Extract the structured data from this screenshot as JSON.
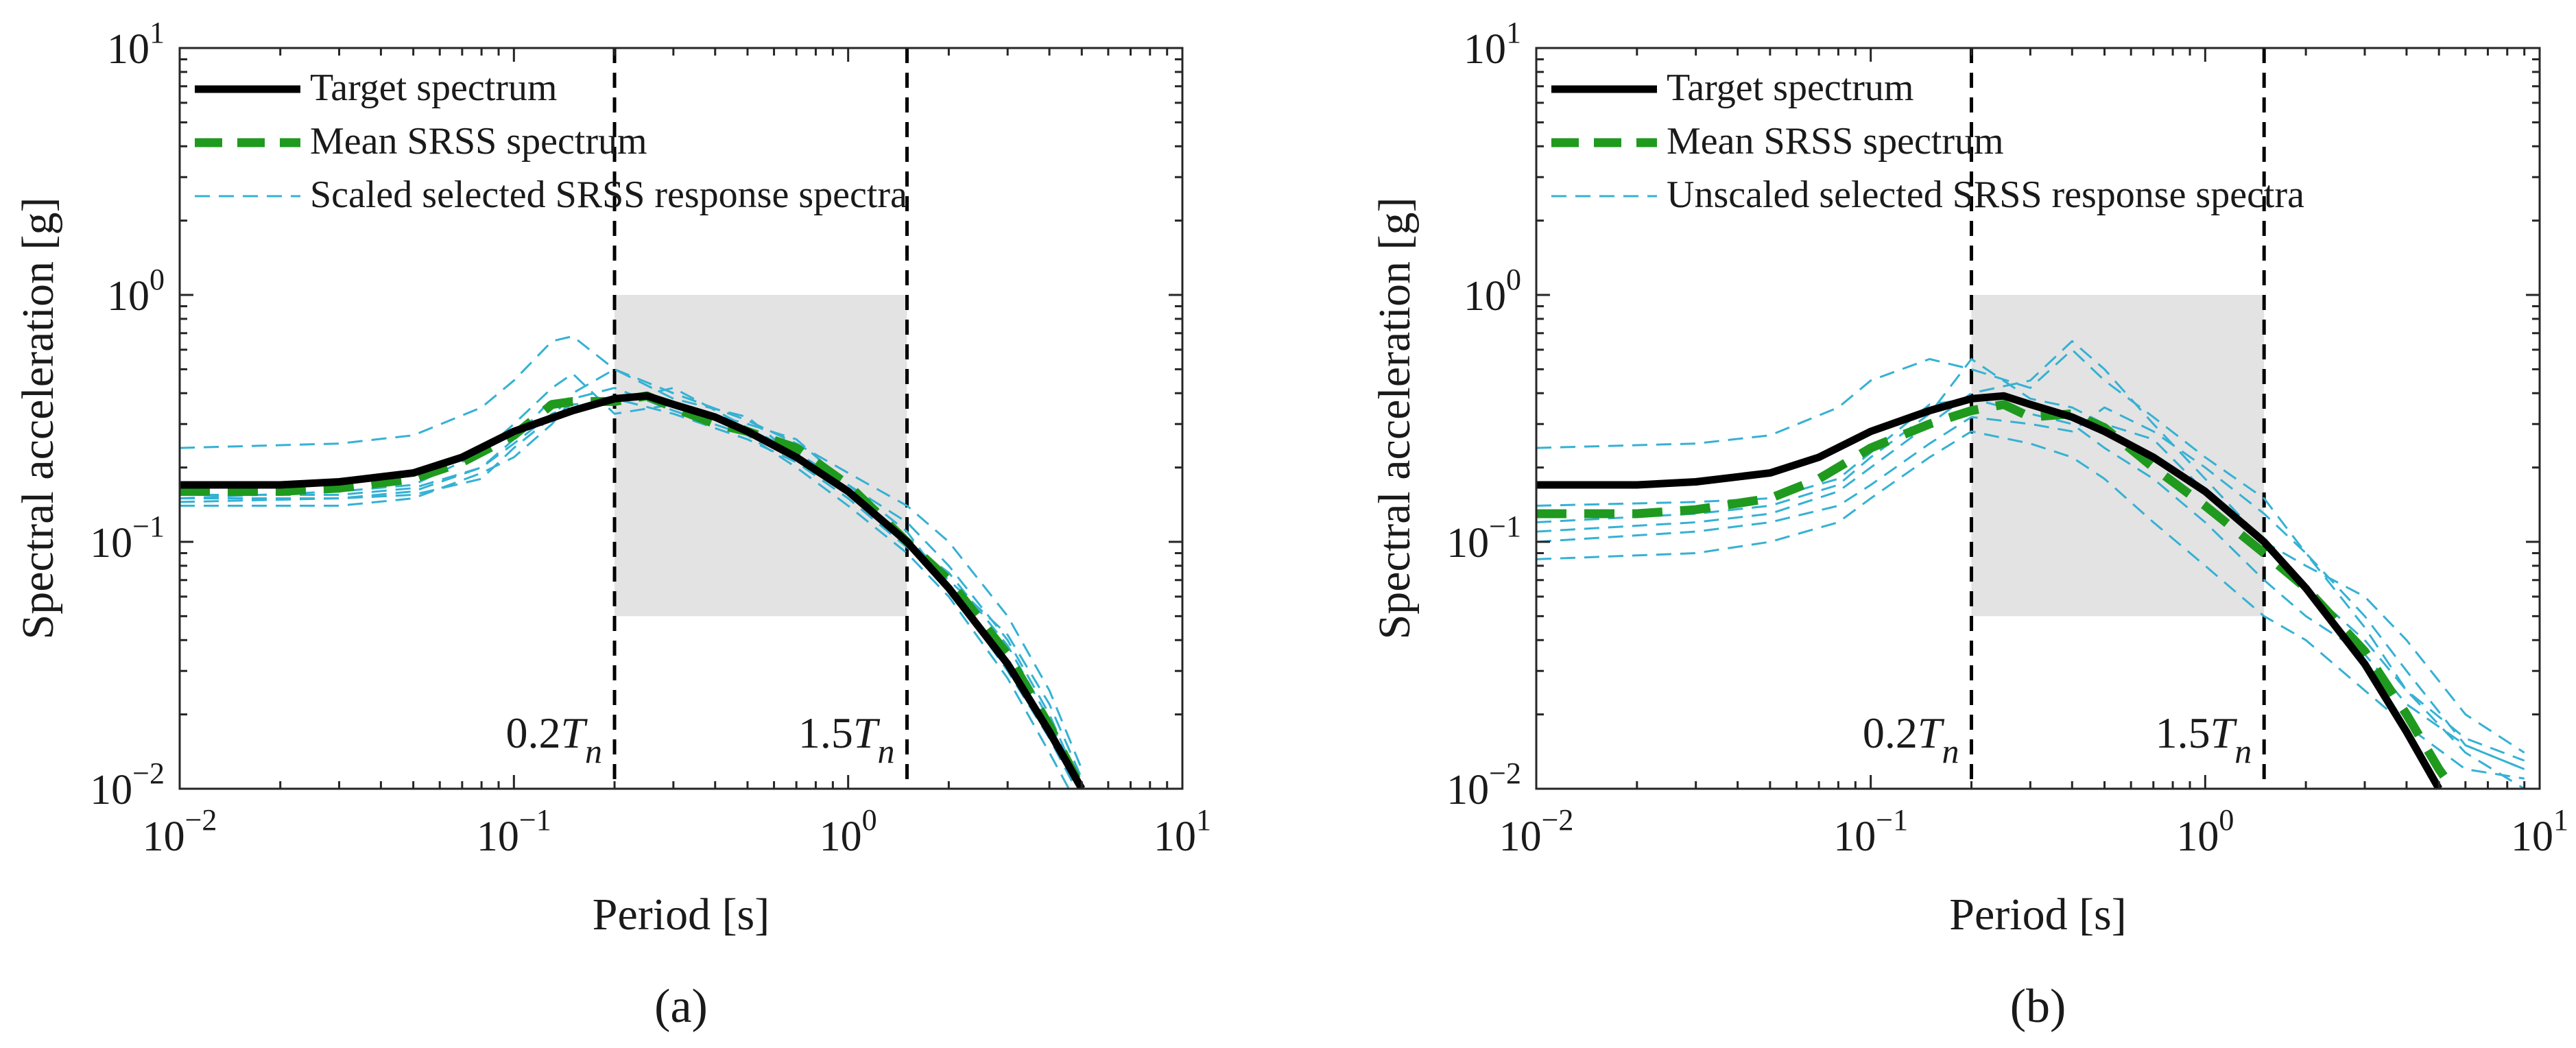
{
  "chart_data": [
    {
      "type": "line",
      "panel_label": "(a)",
      "xscale": "log",
      "yscale": "log",
      "xlim": [
        0.01,
        10
      ],
      "ylim": [
        0.01,
        10
      ],
      "xlabel": "Period [s]",
      "ylabel": "Spectral acceleration [g]",
      "x_ticks": [
        {
          "value": 0.01,
          "base": "10",
          "exp": "−2"
        },
        {
          "value": 0.1,
          "base": "10",
          "exp": "−1"
        },
        {
          "value": 1,
          "base": "10",
          "exp": "0"
        },
        {
          "value": 10,
          "base": "10",
          "exp": "1"
        }
      ],
      "y_ticks": [
        {
          "value": 0.01,
          "base": "10",
          "exp": "−2"
        },
        {
          "value": 0.1,
          "base": "10",
          "exp": "−1"
        },
        {
          "value": 1,
          "base": "10",
          "exp": "0"
        },
        {
          "value": 10,
          "base": "10",
          "exp": "1"
        }
      ],
      "legend_position": "top-left",
      "shaded_region": {
        "x": [
          0.2,
          1.5
        ],
        "y": [
          0.05,
          1
        ]
      },
      "vlines": [
        {
          "x": 0.2,
          "label": "0.2",
          "label_var": "T",
          "label_sub": "n"
        },
        {
          "x": 1.5,
          "label": "1.5",
          "label_var": "T",
          "label_sub": "n"
        }
      ],
      "series": [
        {
          "name": "Target spectrum",
          "role": "target",
          "color": "#000000",
          "x": [
            0.01,
            0.02,
            0.03,
            0.05,
            0.07,
            0.1,
            0.15,
            0.2,
            0.25,
            0.3,
            0.4,
            0.5,
            0.7,
            1.0,
            1.5,
            2.0,
            3.0,
            4.0,
            5.0
          ],
          "values": [
            0.17,
            0.17,
            0.175,
            0.19,
            0.22,
            0.28,
            0.34,
            0.38,
            0.39,
            0.36,
            0.32,
            0.28,
            0.22,
            0.16,
            0.1,
            0.065,
            0.032,
            0.017,
            0.01
          ]
        },
        {
          "name": "Mean SRSS spectrum",
          "role": "mean",
          "color": "#1f9a1f",
          "x": [
            0.01,
            0.02,
            0.03,
            0.05,
            0.07,
            0.1,
            0.13,
            0.15,
            0.2,
            0.25,
            0.3,
            0.4,
            0.5,
            0.7,
            1.0,
            1.5,
            2.0,
            3.0,
            4.0,
            5.0
          ],
          "values": [
            0.16,
            0.16,
            0.165,
            0.18,
            0.21,
            0.27,
            0.36,
            0.37,
            0.37,
            0.39,
            0.35,
            0.3,
            0.28,
            0.24,
            0.17,
            0.1,
            0.07,
            0.035,
            0.018,
            0.01
          ]
        },
        {
          "name": "Scaled selected SRSS response spectra",
          "role": "record",
          "color": "#35b1d3",
          "x": [
            0.01,
            0.03,
            0.05,
            0.08,
            0.1,
            0.13,
            0.15,
            0.2,
            0.3,
            0.5,
            0.7,
            1.0,
            1.5,
            2.0,
            3.0,
            4.0,
            5.0
          ],
          "values": [
            0.24,
            0.25,
            0.27,
            0.35,
            0.45,
            0.65,
            0.68,
            0.5,
            0.4,
            0.31,
            0.25,
            0.19,
            0.14,
            0.1,
            0.05,
            0.025,
            0.012
          ]
        },
        {
          "name": "",
          "role": "record",
          "color": "#35b1d3",
          "x": [
            0.01,
            0.03,
            0.05,
            0.08,
            0.1,
            0.13,
            0.15,
            0.2,
            0.3,
            0.5,
            0.7,
            1.0,
            1.5,
            2.0,
            3.0,
            4.0,
            5.0
          ],
          "values": [
            0.14,
            0.14,
            0.15,
            0.19,
            0.22,
            0.3,
            0.38,
            0.42,
            0.34,
            0.27,
            0.2,
            0.14,
            0.09,
            0.06,
            0.028,
            0.014,
            0.008
          ]
        },
        {
          "name": "",
          "role": "record",
          "color": "#35b1d3",
          "x": [
            0.01,
            0.03,
            0.05,
            0.08,
            0.1,
            0.13,
            0.15,
            0.2,
            0.3,
            0.5,
            0.7,
            1.0,
            1.5,
            2.0,
            3.0,
            4.0,
            5.0
          ],
          "values": [
            0.15,
            0.15,
            0.16,
            0.2,
            0.25,
            0.33,
            0.36,
            0.37,
            0.42,
            0.29,
            0.23,
            0.17,
            0.12,
            0.08,
            0.04,
            0.02,
            0.01
          ]
        },
        {
          "name": "",
          "role": "record",
          "color": "#35b1d3",
          "x": [
            0.01,
            0.03,
            0.05,
            0.08,
            0.1,
            0.13,
            0.15,
            0.2,
            0.3,
            0.5,
            0.7,
            1.0,
            1.5,
            2.0,
            3.0,
            4.0,
            5.0
          ],
          "values": [
            0.15,
            0.16,
            0.17,
            0.23,
            0.3,
            0.42,
            0.48,
            0.33,
            0.36,
            0.3,
            0.26,
            0.17,
            0.11,
            0.065,
            0.03,
            0.016,
            0.009
          ]
        },
        {
          "name": "",
          "role": "record",
          "color": "#35b1d3",
          "x": [
            0.01,
            0.03,
            0.05,
            0.08,
            0.1,
            0.13,
            0.15,
            0.2,
            0.3,
            0.5,
            0.7,
            1.0,
            1.5,
            2.0,
            3.0,
            4.0,
            5.0
          ],
          "values": [
            0.155,
            0.155,
            0.165,
            0.2,
            0.26,
            0.38,
            0.34,
            0.38,
            0.33,
            0.26,
            0.21,
            0.15,
            0.095,
            0.07,
            0.042,
            0.022,
            0.011
          ]
        },
        {
          "name": "",
          "role": "record",
          "color": "#35b1d3",
          "x": [
            0.01,
            0.03,
            0.05,
            0.08,
            0.1,
            0.13,
            0.15,
            0.2,
            0.3,
            0.5,
            0.7,
            1.0,
            1.5,
            2.0,
            3.0,
            4.0,
            5.0
          ],
          "values": [
            0.145,
            0.15,
            0.155,
            0.18,
            0.24,
            0.32,
            0.4,
            0.5,
            0.38,
            0.32,
            0.22,
            0.16,
            0.1,
            0.075,
            0.038,
            0.019,
            0.01
          ]
        }
      ]
    },
    {
      "type": "line",
      "panel_label": "(b)",
      "xscale": "log",
      "yscale": "log",
      "xlim": [
        0.01,
        10
      ],
      "ylim": [
        0.01,
        10
      ],
      "xlabel": "Period [s]",
      "ylabel": "Spectral acceleration [g]",
      "x_ticks": [
        {
          "value": 0.01,
          "base": "10",
          "exp": "−2"
        },
        {
          "value": 0.1,
          "base": "10",
          "exp": "−1"
        },
        {
          "value": 1,
          "base": "10",
          "exp": "0"
        },
        {
          "value": 10,
          "base": "10",
          "exp": "1"
        }
      ],
      "y_ticks": [
        {
          "value": 0.01,
          "base": "10",
          "exp": "−2"
        },
        {
          "value": 0.1,
          "base": "10",
          "exp": "−1"
        },
        {
          "value": 1,
          "base": "10",
          "exp": "0"
        },
        {
          "value": 10,
          "base": "10",
          "exp": "1"
        }
      ],
      "legend_position": "top-left",
      "shaded_region": {
        "x": [
          0.2,
          1.5
        ],
        "y": [
          0.05,
          1
        ]
      },
      "vlines": [
        {
          "x": 0.2,
          "label": "0.2",
          "label_var": "T",
          "label_sub": "n"
        },
        {
          "x": 1.5,
          "label": "1.5",
          "label_var": "T",
          "label_sub": "n"
        }
      ],
      "series": [
        {
          "name": "Target spectrum",
          "role": "target",
          "color": "#000000",
          "x": [
            0.01,
            0.02,
            0.03,
            0.05,
            0.07,
            0.1,
            0.15,
            0.2,
            0.25,
            0.3,
            0.4,
            0.5,
            0.7,
            1.0,
            1.5,
            2.0,
            3.0,
            4.0,
            5.0
          ],
          "values": [
            0.17,
            0.17,
            0.175,
            0.19,
            0.22,
            0.28,
            0.34,
            0.38,
            0.39,
            0.36,
            0.32,
            0.28,
            0.22,
            0.16,
            0.1,
            0.065,
            0.032,
            0.017,
            0.01
          ]
        },
        {
          "name": "Mean SRSS spectrum",
          "role": "mean",
          "color": "#1f9a1f",
          "x": [
            0.01,
            0.02,
            0.03,
            0.05,
            0.07,
            0.1,
            0.15,
            0.2,
            0.25,
            0.3,
            0.4,
            0.5,
            0.7,
            1.0,
            1.5,
            2.0,
            3.0,
            4.0,
            5.0,
            5.5
          ],
          "values": [
            0.13,
            0.13,
            0.135,
            0.15,
            0.18,
            0.24,
            0.3,
            0.34,
            0.36,
            0.32,
            0.33,
            0.29,
            0.2,
            0.14,
            0.09,
            0.065,
            0.036,
            0.02,
            0.012,
            0.01
          ]
        },
        {
          "name": "Unscaled selected SRSS response spectra",
          "role": "record",
          "color": "#35b1d3",
          "x": [
            0.01,
            0.03,
            0.05,
            0.08,
            0.1,
            0.15,
            0.2,
            0.3,
            0.4,
            0.5,
            0.7,
            1.0,
            1.5,
            2.0,
            3.0,
            4.0,
            6.0,
            9.0
          ],
          "values": [
            0.24,
            0.25,
            0.27,
            0.35,
            0.45,
            0.55,
            0.5,
            0.42,
            0.6,
            0.45,
            0.32,
            0.22,
            0.15,
            0.09,
            0.05,
            0.03,
            0.015,
            0.012
          ]
        },
        {
          "name": "",
          "role": "record",
          "color": "#35b1d3",
          "x": [
            0.01,
            0.03,
            0.05,
            0.08,
            0.1,
            0.15,
            0.2,
            0.3,
            0.4,
            0.5,
            0.7,
            1.0,
            1.5,
            2.0,
            3.0,
            4.0,
            6.0,
            9.0
          ],
          "values": [
            0.085,
            0.09,
            0.1,
            0.12,
            0.15,
            0.22,
            0.28,
            0.25,
            0.22,
            0.18,
            0.12,
            0.08,
            0.05,
            0.04,
            0.025,
            0.018,
            0.012,
            0.011
          ]
        },
        {
          "name": "",
          "role": "record",
          "color": "#35b1d3",
          "x": [
            0.01,
            0.03,
            0.05,
            0.08,
            0.1,
            0.15,
            0.2,
            0.3,
            0.4,
            0.5,
            0.7,
            1.0,
            1.5,
            2.0,
            3.0,
            4.0,
            6.0,
            9.0
          ],
          "values": [
            0.11,
            0.12,
            0.13,
            0.16,
            0.2,
            0.3,
            0.4,
            0.45,
            0.65,
            0.5,
            0.3,
            0.18,
            0.1,
            0.065,
            0.04,
            0.025,
            0.016,
            0.013
          ]
        },
        {
          "name": "",
          "role": "record",
          "color": "#35b1d3",
          "x": [
            0.01,
            0.03,
            0.05,
            0.08,
            0.1,
            0.15,
            0.2,
            0.3,
            0.4,
            0.5,
            0.7,
            1.0,
            1.5,
            2.0,
            3.0,
            4.0,
            6.0,
            9.0
          ],
          "values": [
            0.12,
            0.13,
            0.14,
            0.17,
            0.22,
            0.33,
            0.55,
            0.38,
            0.35,
            0.3,
            0.26,
            0.16,
            0.1,
            0.08,
            0.06,
            0.04,
            0.02,
            0.014
          ]
        },
        {
          "name": "",
          "role": "record",
          "color": "#35b1d3",
          "x": [
            0.01,
            0.03,
            0.05,
            0.08,
            0.1,
            0.15,
            0.2,
            0.3,
            0.4,
            0.5,
            0.7,
            1.0,
            1.5,
            2.0,
            3.0,
            4.0,
            6.0,
            9.0
          ],
          "values": [
            0.1,
            0.11,
            0.12,
            0.14,
            0.17,
            0.25,
            0.32,
            0.3,
            0.28,
            0.35,
            0.28,
            0.2,
            0.13,
            0.09,
            0.045,
            0.025,
            0.014,
            0.01
          ]
        },
        {
          "name": "",
          "role": "record",
          "color": "#35b1d3",
          "x": [
            0.01,
            0.03,
            0.05,
            0.08,
            0.1,
            0.15,
            0.2,
            0.3,
            0.4,
            0.5,
            0.7,
            1.0,
            1.5,
            2.0,
            3.0,
            4.0,
            6.0,
            9.0
          ],
          "values": [
            0.14,
            0.145,
            0.15,
            0.18,
            0.23,
            0.36,
            0.38,
            0.33,
            0.3,
            0.24,
            0.18,
            0.12,
            0.07,
            0.05,
            0.035,
            0.022,
            0.015,
            0.012
          ]
        }
      ]
    }
  ]
}
